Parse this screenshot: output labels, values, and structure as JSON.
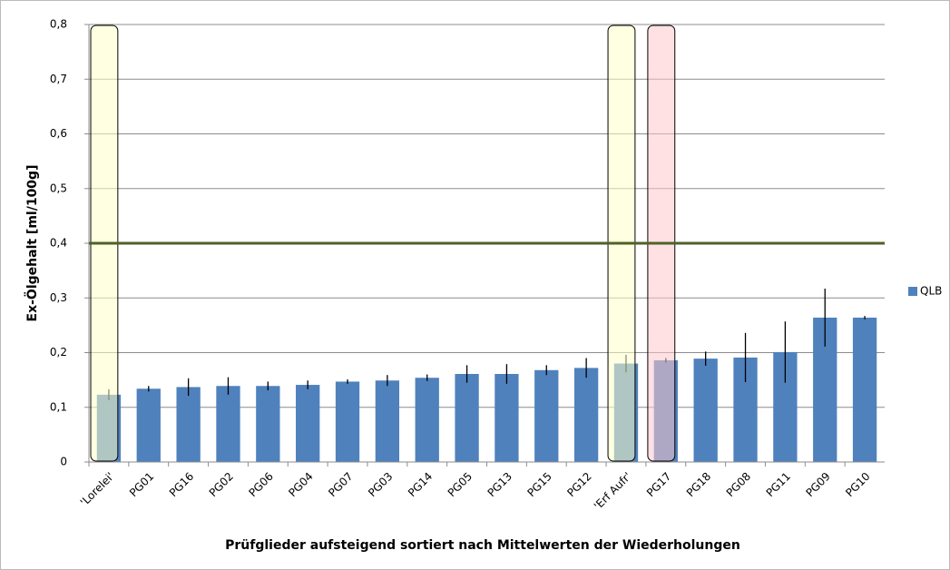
{
  "chart_data": {
    "type": "bar",
    "x_label": "Prüfglieder aufsteigend sortiert nach Mittelwerten der Wiederholungen",
    "y_label": "Ex-Ölgehalt [ml/100g]",
    "categories": [
      "'Lorelei'",
      "PG01",
      "PG16",
      "PG02",
      "PG06",
      "PG04",
      "PG07",
      "PG03",
      "PG14",
      "PG05",
      "PG13",
      "PG15",
      "PG12",
      "'Erf Aufr'",
      "PG17",
      "PG18",
      "PG08",
      "PG11",
      "PG09",
      "PG10"
    ],
    "series": [
      {
        "name": "QLB",
        "color": "#4f81bd",
        "values": [
          0.123,
          0.134,
          0.137,
          0.139,
          0.139,
          0.141,
          0.147,
          0.149,
          0.154,
          0.161,
          0.161,
          0.168,
          0.172,
          0.18,
          0.186,
          0.189,
          0.191,
          0.201,
          0.264,
          0.264
        ],
        "errors": [
          0.01,
          0.005,
          0.016,
          0.016,
          0.008,
          0.008,
          0.004,
          0.01,
          0.006,
          0.016,
          0.018,
          0.009,
          0.018,
          0.016,
          0.004,
          0.013,
          0.045,
          0.056,
          0.053,
          0.003
        ]
      }
    ],
    "ylim": [
      0,
      0.8
    ],
    "yticks": [
      0,
      {
        "value": 0.1,
        "label": "0,1"
      },
      {
        "value": 0.2,
        "label": "0,2"
      },
      {
        "value": 0.3,
        "label": "0,3"
      },
      {
        "value": 0.4,
        "label": "0,4"
      },
      {
        "value": 0.5,
        "label": "0,5"
      },
      {
        "value": 0.6,
        "label": "0,6"
      },
      {
        "value": 0.7,
        "label": "0,7"
      },
      {
        "value": 0.8,
        "label": "0,8"
      }
    ],
    "grid": true,
    "legend": "right",
    "reference_line": {
      "value": 0.4,
      "color": "#4f6228"
    },
    "highlights": [
      {
        "index": 0,
        "color": "#ffffc8"
      },
      {
        "index": 13,
        "color": "#ffffc8"
      },
      {
        "index": 14,
        "color": "#ffc8cc"
      }
    ]
  }
}
